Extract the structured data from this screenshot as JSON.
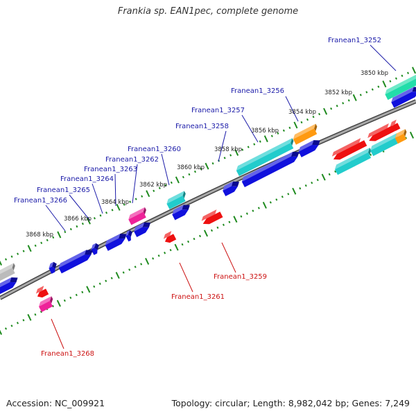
{
  "title": "Frankia sp. EAN1pec, complete genome",
  "footer": {
    "accession": "Accession: NC_009921",
    "summary": "Topology: circular; Length: 8,982,042 bp; Genes: 7,249"
  },
  "colors": {
    "backbone": "#777777",
    "tick": "#1e8a1e",
    "label_top": "#1a1aa8",
    "label_bottom": "#cc1111",
    "gene_blue": "#1010dd",
    "gene_cyan": "#22cccc",
    "gene_orange": "#ff9a10",
    "gene_red": "#ee1010",
    "gene_magenta": "#ee2299",
    "gene_teal": "#22ddaa",
    "gene_gray": "#bbbbbb"
  },
  "scale_labels": [
    "3850 kbp",
    "3852 kbp",
    "3854 kbp",
    "3856 kbp",
    "3858 kbp",
    "3860 kbp",
    "3862 kbp",
    "3864 kbp",
    "3866 kbp",
    "3868 kbp"
  ],
  "gene_labels_top": [
    "Franean1_3252",
    "Franean1_3256",
    "Franean1_3257",
    "Franean1_3258",
    "Franean1_3260",
    "Franean1_3262",
    "Franean1_3263",
    "Franean1_3264",
    "Franean1_3265",
    "Franean1_3266"
  ],
  "gene_labels_bottom": [
    "Franean1_3259",
    "Franean1_3261",
    "Franean1_3268"
  ]
}
